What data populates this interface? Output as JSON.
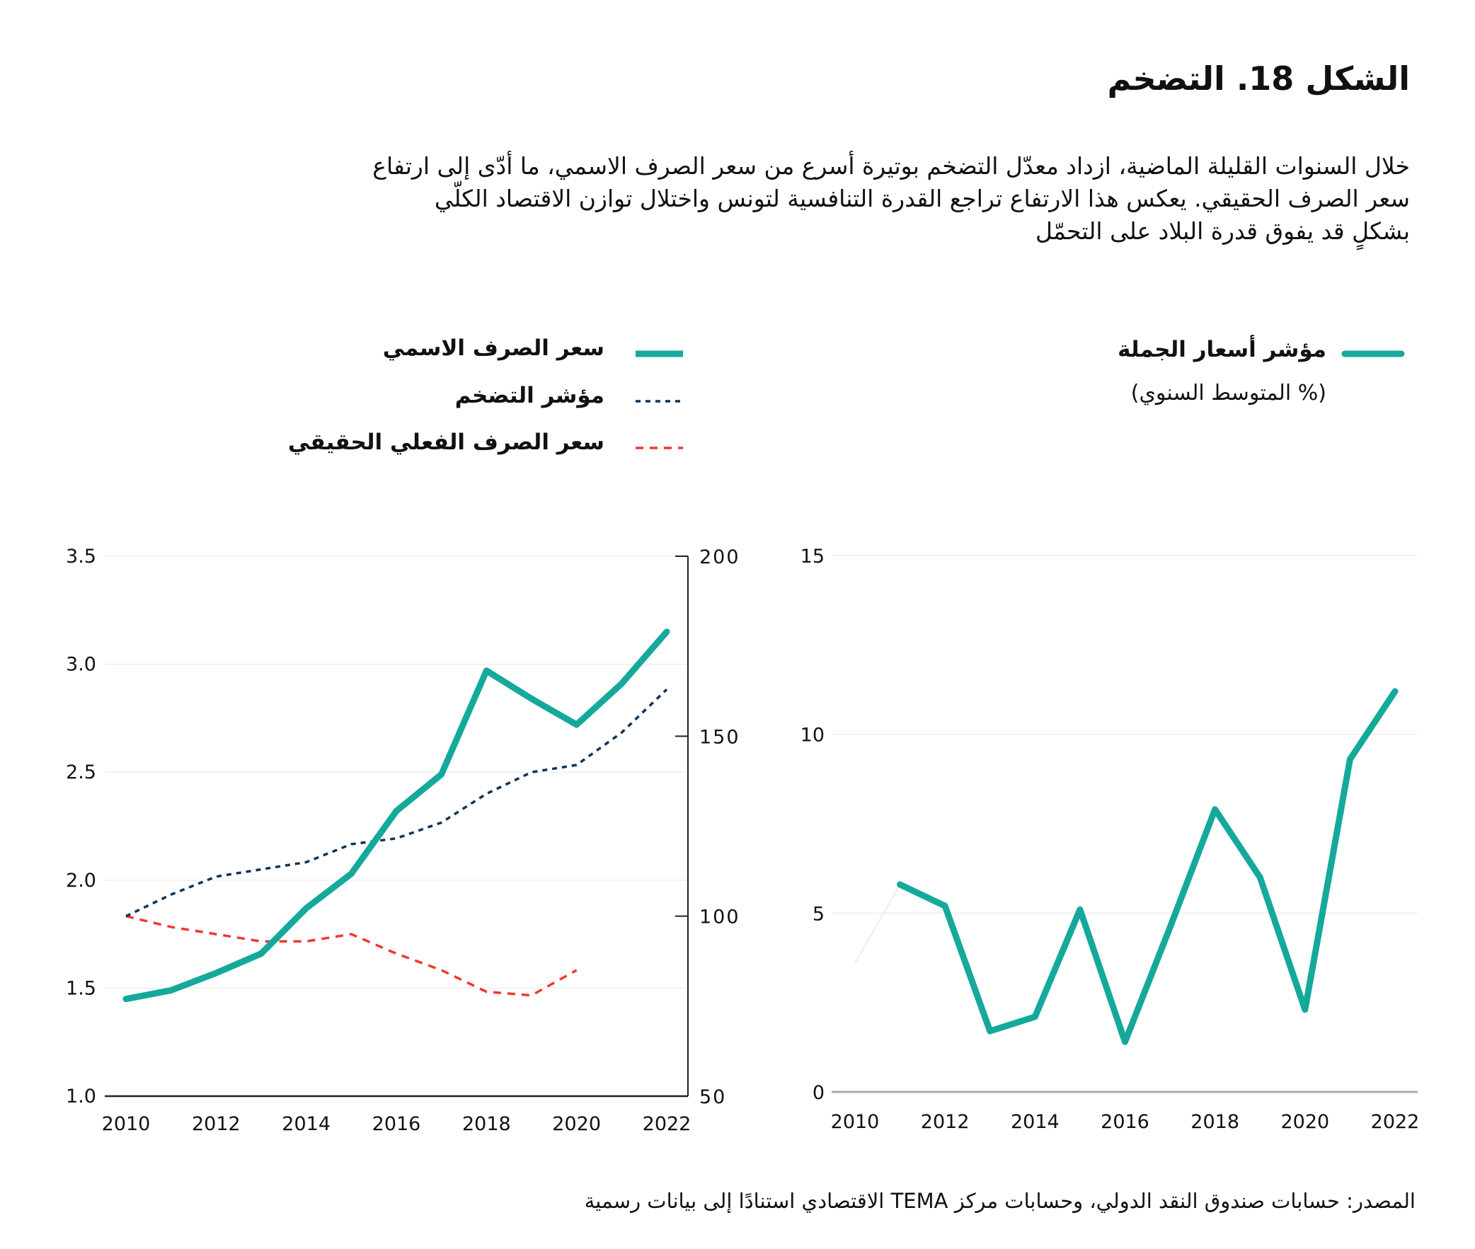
{
  "title": "الشكل 18. التضخم",
  "paragraph": [
    "خلال السنوات القليلة الماضية، ازداد معدّل التضخم بوتيرة أسرع من سعر الصرف الاسمي، ما أدّى إلى ارتفاع",
    "سعر الصرف الحقيقي. يعكس هذا الارتفاع تراجع القدرة التنافسية لتونس واختلال توازن الاقتصاد الكلّي",
    "بشكلٍ قد يفوق قدرة البلاد على التحمّل"
  ],
  "source": "المصدر: حسابات صندوق النقد الدولي، وحسابات مركز TEMA الاقتصادي استنادًا إلى بيانات رسمية",
  "colors": {
    "teal": "#14a99b",
    "navy": "#0d3459",
    "red": "#f0392f",
    "grid": "#eeeeee",
    "axis": "#222222"
  },
  "chart_data": [
    {
      "type": "line",
      "x": [
        2010,
        2011,
        2012,
        2013,
        2014,
        2015,
        2016,
        2017,
        2018,
        2019,
        2020,
        2021,
        2022
      ],
      "xticks": [
        "2010",
        "2012",
        "2014",
        "2016",
        "2018",
        "2020",
        "2022"
      ],
      "ylim_left": [
        1.0,
        3.5
      ],
      "yticks_left": [
        "1.0",
        "1.5",
        "2.0",
        "2.5",
        "3.0",
        "3.5"
      ],
      "ylim_right": [
        50,
        200
      ],
      "yticks_right": [
        "50",
        "100",
        "150",
        "200"
      ],
      "grid": true,
      "legend_position": "top",
      "series": [
        {
          "name": "سعر الصرف الاسمي",
          "axis": "left",
          "style": "solid",
          "color": "#14a99b",
          "values": [
            1.45,
            1.49,
            1.57,
            1.66,
            1.87,
            2.03,
            2.32,
            2.49,
            2.97,
            2.84,
            2.72,
            2.91,
            3.15
          ]
        },
        {
          "name": "مؤشر التضخم",
          "axis": "right",
          "style": "dotted",
          "color": "#0d3459",
          "values": [
            100,
            106,
            111,
            113,
            115,
            120,
            121.6,
            126,
            134,
            140,
            142,
            151,
            163
          ]
        },
        {
          "name": "سعر الصرف الفعلي الحقيقي",
          "axis": "right",
          "style": "dashed",
          "color": "#f0392f",
          "values": [
            100,
            97,
            95,
            93,
            93,
            95,
            89.6,
            85,
            79,
            78,
            85,
            null,
            null
          ]
        }
      ]
    },
    {
      "type": "line",
      "x": [
        2010,
        2011,
        2012,
        2013,
        2014,
        2015,
        2016,
        2017,
        2018,
        2019,
        2020,
        2021,
        2022
      ],
      "xticks": [
        "2010",
        "2012",
        "2014",
        "2016",
        "2018",
        "2020",
        "2022"
      ],
      "ylim": [
        0,
        15
      ],
      "yticks": [
        "0",
        "5",
        "10",
        "15"
      ],
      "grid": true,
      "legend_position": "top-right",
      "series": [
        {
          "name": "مؤشر أسعار الجملة",
          "color": "#14a99b",
          "values": [
            3.6,
            5.8,
            5.2,
            1.7,
            2.1,
            5.1,
            1.4,
            4.6,
            7.9,
            6.0,
            2.3,
            9.3,
            11.2
          ]
        }
      ],
      "subtitle": "(% المتوسط السنوي)"
    }
  ]
}
